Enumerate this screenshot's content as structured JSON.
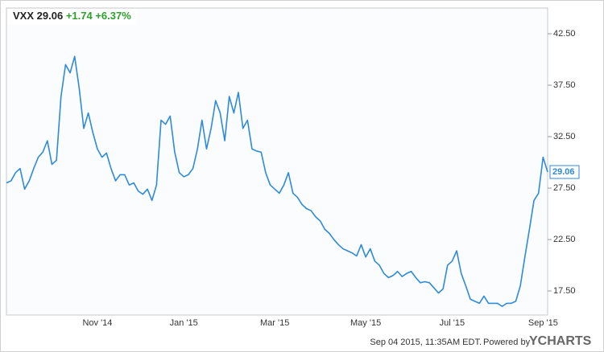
{
  "chart_data": {
    "type": "line",
    "change": "+1.74",
    "change_percent": "+6.37%",
    "categories": [
      null,
      null,
      null,
      null,
      null,
      null,
      null,
      null,
      null,
      null,
      null,
      null,
      null,
      null,
      null,
      null,
      null,
      null,
      null,
      null,
      "Nov '14",
      null,
      null,
      null,
      null,
      null,
      null,
      null,
      null,
      null,
      null,
      null,
      null,
      null,
      null,
      null,
      null,
      null,
      null,
      "Jan '15",
      null,
      null,
      null,
      null,
      null,
      null,
      null,
      null,
      null,
      null,
      null,
      null,
      null,
      null,
      null,
      null,
      null,
      null,
      null,
      "Mar '15",
      null,
      null,
      null,
      null,
      null,
      null,
      null,
      null,
      null,
      null,
      null,
      null,
      null,
      null,
      null,
      null,
      null,
      null,
      null,
      "May '15",
      null,
      null,
      null,
      null,
      null,
      null,
      null,
      null,
      null,
      null,
      null,
      null,
      null,
      null,
      null,
      null,
      null,
      null,
      "Jul '15",
      null,
      null,
      null,
      null,
      null,
      null,
      null,
      null,
      null,
      null,
      null,
      null,
      null,
      null,
      null,
      null,
      null,
      null,
      null,
      "Sep '15",
      null
    ],
    "series": [
      {
        "name": "VXX",
        "color": "#2f8ad8",
        "values": [
          28.0,
          28.2,
          29.0,
          29.4,
          27.4,
          28.2,
          29.4,
          30.5,
          31.0,
          32.1,
          29.8,
          30.2,
          36.4,
          39.5,
          38.7,
          40.3,
          37.2,
          33.3,
          34.8,
          32.9,
          31.3,
          30.5,
          30.9,
          29.4,
          28.2,
          28.8,
          28.8,
          27.8,
          28.0,
          27.2,
          26.9,
          27.4,
          26.3,
          27.8,
          34.1,
          33.7,
          34.5,
          31.0,
          29.0,
          28.6,
          28.8,
          29.4,
          31.3,
          34.1,
          31.3,
          33.3,
          36.0,
          34.8,
          32.1,
          36.4,
          34.8,
          36.8,
          33.3,
          34.1,
          31.3,
          31.1,
          31.0,
          29.0,
          27.8,
          27.4,
          27.0,
          27.8,
          29.0,
          27.0,
          26.6,
          25.9,
          25.5,
          25.3,
          24.7,
          24.3,
          23.5,
          23.1,
          22.5,
          22.0,
          21.6,
          21.4,
          21.2,
          20.9,
          22.0,
          20.8,
          21.6,
          20.4,
          20.0,
          19.2,
          18.8,
          19.0,
          19.4,
          18.9,
          19.2,
          19.4,
          18.8,
          18.3,
          18.4,
          18.3,
          17.8,
          17.3,
          17.7,
          20.0,
          20.4,
          21.4,
          19.2,
          18.0,
          16.7,
          16.5,
          16.3,
          17.0,
          16.3,
          16.3,
          16.3,
          16.0,
          16.3,
          16.3,
          16.5,
          18.0,
          20.8,
          23.5,
          26.3,
          27.0,
          30.5,
          29.06
        ]
      }
    ],
    "ylim": [
      15.16,
      45.0
    ],
    "yticks": [
      {
        "value": 17.5,
        "label": "17.50"
      },
      {
        "value": 22.5,
        "label": "22.50"
      },
      {
        "value": 27.5,
        "label": "27.50"
      },
      {
        "value": 32.5,
        "label": "32.50"
      },
      {
        "value": 37.5,
        "label": "37.50"
      },
      {
        "value": 42.5,
        "label": "42.50"
      }
    ],
    "grid": false,
    "footer": {
      "timestamp": "Sep 04 2015, 11:35AM EDT.",
      "powered_by": "Powered by",
      "brand": "YCHARTS"
    }
  }
}
